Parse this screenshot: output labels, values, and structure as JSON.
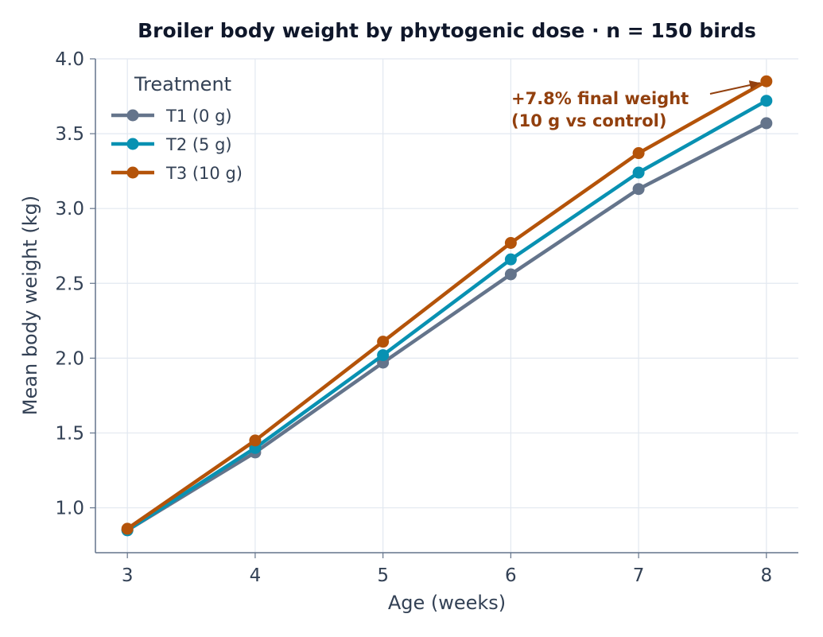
{
  "chart_data": {
    "type": "line",
    "title": "Broiler body weight by phytogenic dose  ·  n = 150 birds",
    "xlabel": "Age (weeks)",
    "ylabel": "Mean body weight (kg)",
    "x": [
      3,
      4,
      5,
      6,
      7,
      8
    ],
    "xlim": [
      2.75,
      8.25
    ],
    "ylim": [
      0.7,
      4.0
    ],
    "xticks": [
      "3",
      "4",
      "5",
      "6",
      "7",
      "8"
    ],
    "yticks": [
      "1.0",
      "1.5",
      "2.0",
      "2.5",
      "3.0",
      "3.5",
      "4.0"
    ],
    "grid": true,
    "legend": {
      "title": "Treatment",
      "placement": "top-left"
    },
    "series": [
      {
        "name": "T1 (0 g)",
        "color": "#64748b",
        "values": [
          0.85,
          1.37,
          1.97,
          2.56,
          3.13,
          3.57
        ]
      },
      {
        "name": "T2 (5 g)",
        "color": "#0891b2",
        "values": [
          0.85,
          1.4,
          2.02,
          2.66,
          3.24,
          3.72
        ]
      },
      {
        "name": "T3 (10 g)",
        "color": "#b45309",
        "values": [
          0.86,
          1.45,
          2.11,
          2.77,
          3.37,
          3.85
        ]
      }
    ],
    "annotation": {
      "lines": [
        "+7.8% final weight",
        "(10 g vs control)"
      ],
      "color": "#92400e",
      "target_x": 8,
      "target_y": 3.85
    }
  }
}
